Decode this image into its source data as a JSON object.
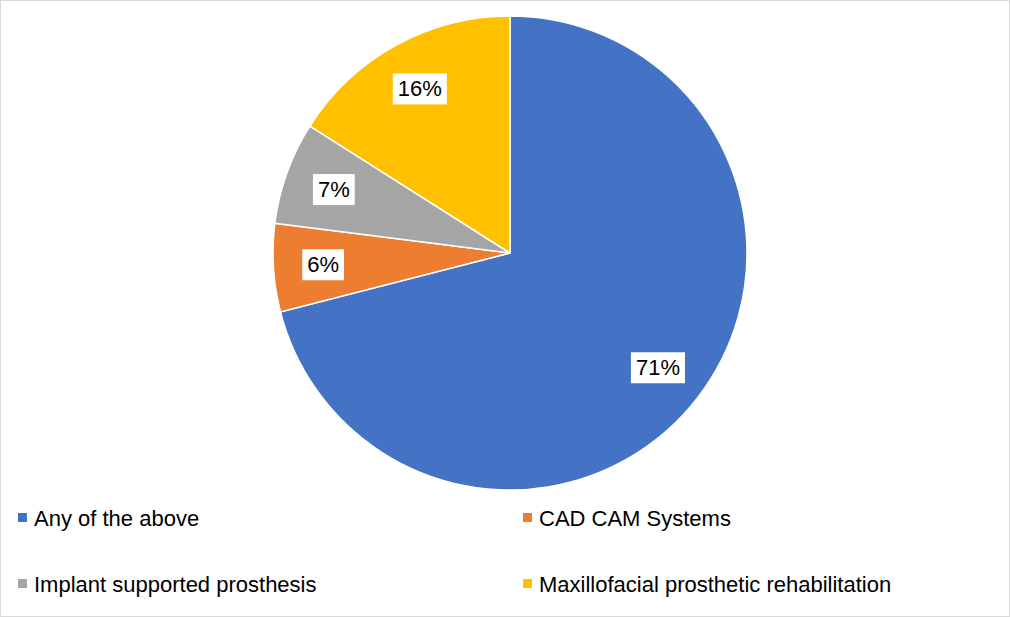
{
  "chart_data": {
    "type": "pie",
    "categories": [
      "Any of the above",
      "CAD CAM Systems",
      "Implant supported prosthesis",
      "Maxillofacial prosthetic rehabilitation"
    ],
    "values": [
      71,
      6,
      7,
      16
    ],
    "value_labels": [
      "71%",
      "6%",
      "7%",
      "16%"
    ],
    "colors": [
      "#4472c4",
      "#ed7d31",
      "#a5a5a5",
      "#ffc000"
    ],
    "data_labels": true,
    "legend": "bottom"
  }
}
